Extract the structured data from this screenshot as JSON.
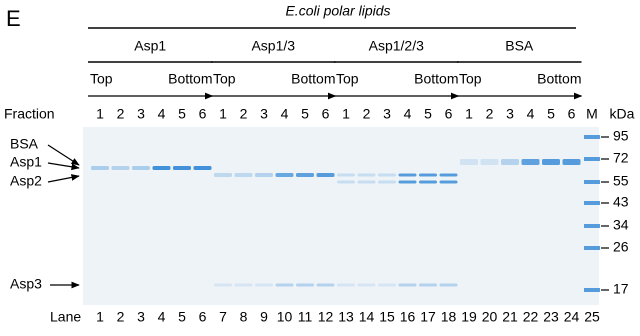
{
  "panel_label": "E",
  "title": "E.coli polar lipids",
  "groups": [
    {
      "name": "Asp1",
      "top": "Top",
      "bottom": "Bottom",
      "fractions": [
        1,
        2,
        3,
        4,
        5,
        6
      ]
    },
    {
      "name": "Asp1/3",
      "top": "Top",
      "bottom": "Bottom",
      "fractions": [
        1,
        2,
        3,
        4,
        5,
        6
      ]
    },
    {
      "name": "Asp1/2/3",
      "top": "Top",
      "bottom": "Bottom",
      "fractions": [
        1,
        2,
        3,
        4,
        5,
        6
      ]
    },
    {
      "name": "BSA",
      "top": "Top",
      "bottom": "Bottom",
      "fractions": [
        1,
        2,
        3,
        4,
        5,
        6
      ]
    }
  ],
  "fraction_label": "Fraction",
  "marker_lane": "M",
  "unit": "kDa",
  "markers": [
    95,
    72,
    55,
    43,
    34,
    26,
    17
  ],
  "protein_labels": [
    "BSA",
    "Asp1",
    "Asp2",
    "Asp3"
  ],
  "lane_label": "Lane",
  "lanes": [
    1,
    2,
    3,
    4,
    5,
    6,
    7,
    8,
    9,
    10,
    11,
    12,
    13,
    14,
    15,
    16,
    17,
    18,
    19,
    20,
    21,
    22,
    23,
    24,
    25
  ]
}
